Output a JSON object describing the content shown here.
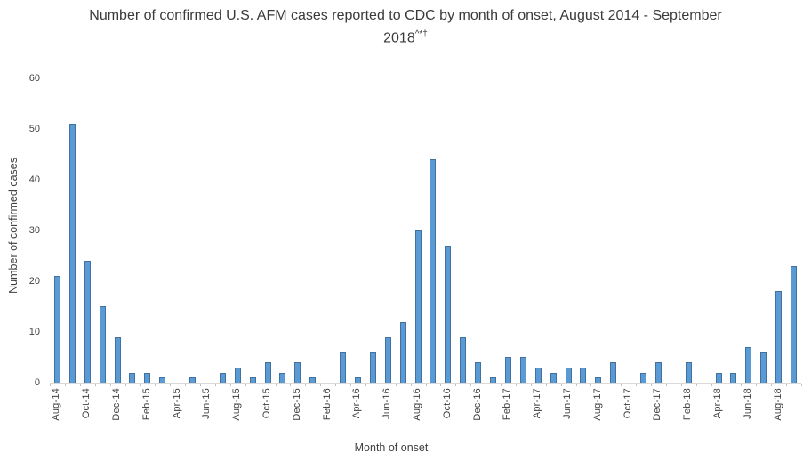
{
  "chart": {
    "title_line1": "Number of confirmed U.S. AFM cases reported to CDC by month of onset, August 2014 - September",
    "title_line2": "2018",
    "title_superscript": "^*†"
  },
  "chart_data": {
    "type": "bar",
    "title": "Number of confirmed U.S. AFM cases reported to CDC by month of onset, August 2014 - September 2018^*†",
    "xlabel": "Month of onset",
    "ylabel": "Number of confirmed cases",
    "ylim": [
      0,
      60
    ],
    "yticks": [
      0,
      10,
      20,
      30,
      40,
      50,
      60
    ],
    "x_tick_label_interval": 2,
    "grid": false,
    "legend": false,
    "bar_fill": "#5B9BD5",
    "bar_border": "#41719C",
    "axis_line_color": "#D9D9D9",
    "tick_color": "#BFBFBF",
    "text_color": "#404040",
    "categories": [
      "Aug-14",
      "Sep-14",
      "Oct-14",
      "Nov-14",
      "Dec-14",
      "Jan-15",
      "Feb-15",
      "Mar-15",
      "Apr-15",
      "May-15",
      "Jun-15",
      "Jul-15",
      "Aug-15",
      "Sep-15",
      "Oct-15",
      "Nov-15",
      "Dec-15",
      "Jan-16",
      "Feb-16",
      "Mar-16",
      "Apr-16",
      "May-16",
      "Jun-16",
      "Jul-16",
      "Aug-16",
      "Sep-16",
      "Oct-16",
      "Nov-16",
      "Dec-16",
      "Jan-17",
      "Feb-17",
      "Mar-17",
      "Apr-17",
      "May-17",
      "Jun-17",
      "Jul-17",
      "Aug-17",
      "Sep-17",
      "Oct-17",
      "Nov-17",
      "Dec-17",
      "Jan-18",
      "Feb-18",
      "Mar-18",
      "Apr-18",
      "May-18",
      "Jun-18",
      "Jul-18",
      "Aug-18",
      "Sep-18"
    ],
    "values": [
      21,
      51,
      24,
      15,
      9,
      2,
      2,
      1,
      0,
      1,
      0,
      2,
      3,
      1,
      4,
      2,
      4,
      1,
      0,
      6,
      1,
      6,
      9,
      12,
      30,
      44,
      27,
      9,
      4,
      1,
      5,
      5,
      3,
      2,
      3,
      3,
      1,
      4,
      0,
      2,
      4,
      0,
      4,
      0,
      2,
      2,
      7,
      6,
      18,
      23
    ]
  }
}
